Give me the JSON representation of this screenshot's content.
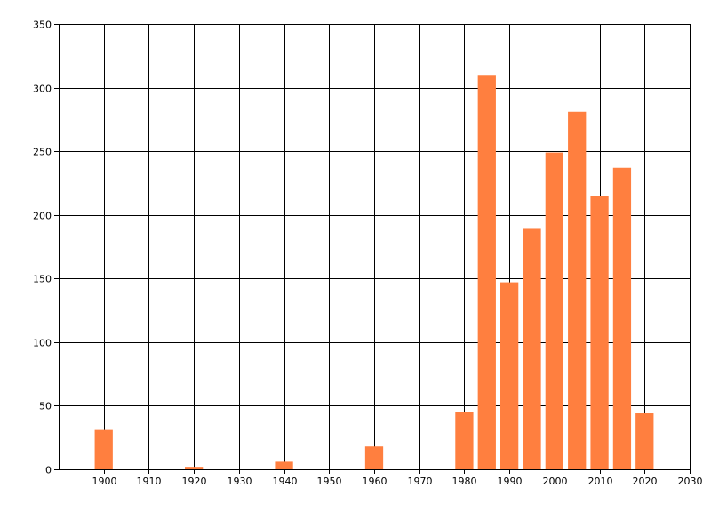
{
  "chart_data": {
    "type": "bar",
    "title": "",
    "xlabel": "",
    "ylabel": "",
    "xlim": [
      1890,
      2030
    ],
    "ylim": [
      0,
      350
    ],
    "grid": true,
    "legend": "none",
    "bar_width_years": 4,
    "x_ticks": [
      1900,
      1910,
      1920,
      1930,
      1940,
      1950,
      1960,
      1970,
      1980,
      1990,
      2000,
      2010,
      2020,
      2030
    ],
    "y_ticks": [
      0,
      50,
      100,
      150,
      200,
      250,
      300,
      350
    ],
    "x_tick_labels": [
      "1900",
      "1910",
      "1920",
      "1930",
      "1940",
      "1950",
      "1960",
      "1970",
      "1980",
      "1990",
      "2000",
      "2010",
      "2020",
      "2030"
    ],
    "y_tick_labels": [
      "0",
      "50",
      "100",
      "150",
      "200",
      "250",
      "300",
      "350"
    ],
    "x": [
      1900,
      1920,
      1940,
      1960,
      1980,
      1985,
      1990,
      1995,
      2000,
      2005,
      2010,
      2015,
      2020
    ],
    "values": [
      31,
      2,
      6,
      18,
      45,
      310,
      147,
      189,
      249,
      281,
      215,
      237,
      44
    ],
    "colors": {
      "bar": "#FF7F3F",
      "grid": "#000000",
      "background": "#FFFFFF"
    }
  }
}
